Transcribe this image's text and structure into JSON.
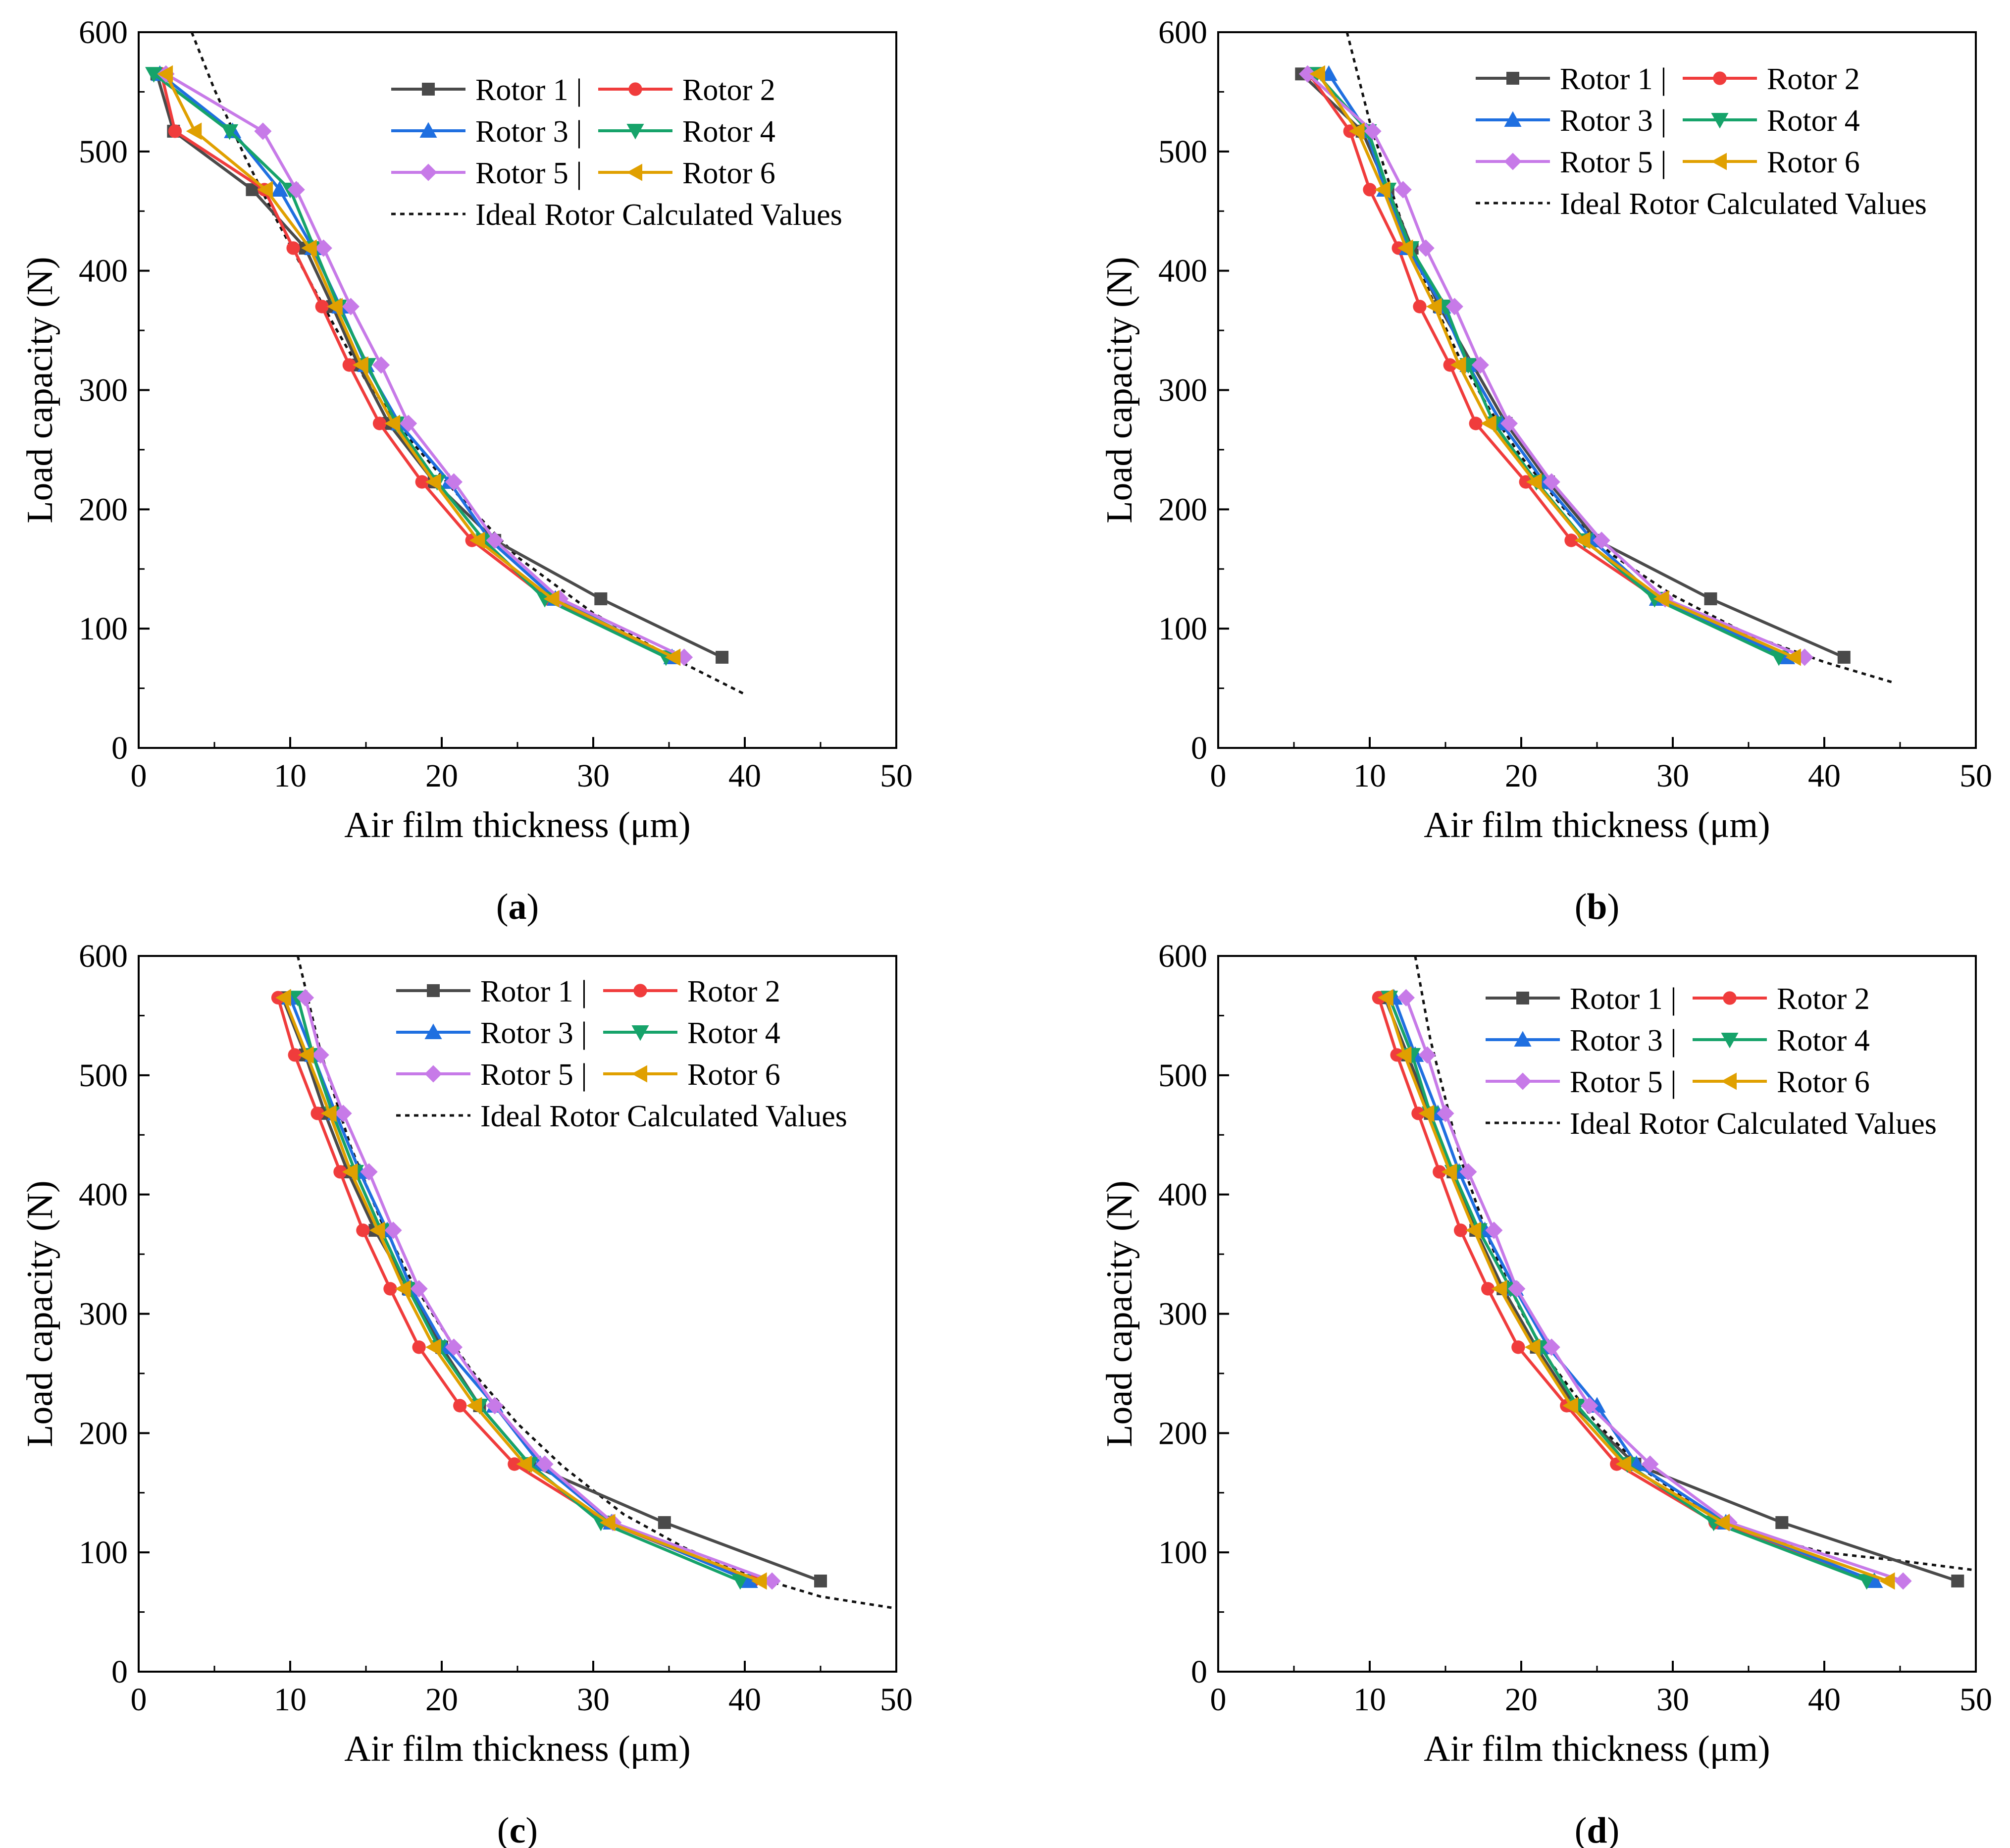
{
  "figure": {
    "font_note": "Times-like serif"
  },
  "colors": {
    "rotor1": "#4a4a4a",
    "rotor2": "#f03c3c",
    "rotor3": "#1f6fe0",
    "rotor4": "#16a36a",
    "rotor5": "#c77ae8",
    "rotor6": "#e0a000",
    "ideal": "#111111"
  },
  "chart_data": [
    {
      "type": "line",
      "panel_label": "(a)",
      "panel_letter": "a",
      "xlabel": "Air film thickness (μm)",
      "ylabel": "Load capacity (N)",
      "xlim": [
        0,
        50
      ],
      "ylim": [
        0,
        600
      ],
      "xticks": [
        0,
        10,
        20,
        30,
        40,
        50
      ],
      "yticks": [
        0,
        100,
        200,
        300,
        400,
        500,
        600
      ],
      "legend": [
        "Rotor 1 |",
        "Rotor 2",
        "Rotor 3 |",
        "Rotor 4",
        "Rotor 5 |",
        "Rotor 6",
        "Ideal Rotor Calculated Values"
      ],
      "legend_position": "top-right",
      "y": [
        565,
        517,
        468,
        419,
        370,
        321,
        272,
        223,
        174,
        125,
        76
      ],
      "series": [
        {
          "name": "Rotor 1",
          "marker": "square",
          "x": [
            1.2,
            2.3,
            7.5,
            11.0,
            12.8,
            14.5,
            16.5,
            19.5,
            23.5,
            30.5,
            38.5
          ]
        },
        {
          "name": "Rotor 2",
          "marker": "circle",
          "x": [
            1.5,
            2.4,
            8.3,
            10.2,
            12.1,
            13.9,
            15.9,
            18.7,
            22.0,
            27.0,
            35.0
          ]
        },
        {
          "name": "Rotor 3",
          "marker": "triangle-up",
          "x": [
            1.4,
            6.2,
            9.3,
            11.5,
            13.3,
            15.0,
            17.2,
            20.5,
            23.2,
            27.5,
            35.2
          ]
        },
        {
          "name": "Rotor 4",
          "marker": "triangle-down",
          "x": [
            1.0,
            6.0,
            10.0,
            11.6,
            13.2,
            15.1,
            17.0,
            19.7,
            22.8,
            26.8,
            34.8
          ]
        },
        {
          "name": "Rotor 5",
          "marker": "diamond",
          "x": [
            1.8,
            8.2,
            10.4,
            12.2,
            14.0,
            16.0,
            17.8,
            20.8,
            23.5,
            27.8,
            36.0
          ]
        },
        {
          "name": "Rotor 6",
          "marker": "triangle-left",
          "x": [
            1.8,
            3.7,
            8.4,
            11.3,
            13.0,
            14.7,
            16.8,
            19.5,
            22.4,
            27.3,
            35.3
          ]
        }
      ],
      "ideal": {
        "name": "Ideal Rotor Calculated Values",
        "x": [
          3.5,
          5,
          7,
          9,
          11,
          13,
          15,
          18,
          21,
          25,
          30,
          35,
          40
        ],
        "y": [
          600,
          552,
          496,
          445,
          398,
          352,
          308,
          257,
          213,
          160,
          113,
          77,
          45
        ]
      }
    },
    {
      "type": "line",
      "panel_label": "(b)",
      "panel_letter": "b",
      "xlabel": "Air film thickness (μm)",
      "ylabel": "Load capacity (N)",
      "xlim": [
        0,
        50
      ],
      "ylim": [
        0,
        600
      ],
      "xticks": [
        0,
        10,
        20,
        30,
        40,
        50
      ],
      "yticks": [
        0,
        100,
        200,
        300,
        400,
        500,
        600
      ],
      "legend": [
        "Rotor 1 |",
        "Rotor 2",
        "Rotor 3 |",
        "Rotor 4",
        "Rotor 5 |",
        "Rotor 6",
        "Ideal Rotor Calculated Values"
      ],
      "legend_position": "top-right",
      "y": [
        565,
        517,
        468,
        419,
        370,
        321,
        272,
        223,
        174,
        125,
        76
      ],
      "series": [
        {
          "name": "Rotor 1",
          "marker": "square",
          "x": [
            5.5,
            9.5,
            11.2,
            12.8,
            14.6,
            16.8,
            19.0,
            21.8,
            25.0,
            32.5,
            41.3
          ]
        },
        {
          "name": "Rotor 2",
          "marker": "circle",
          "x": [
            6.0,
            8.7,
            10.0,
            11.9,
            13.3,
            15.3,
            17.0,
            20.3,
            23.3,
            29.0,
            37.2
          ]
        },
        {
          "name": "Rotor 3",
          "marker": "triangle-up",
          "x": [
            7.3,
            9.8,
            11.0,
            12.5,
            14.8,
            16.5,
            18.7,
            21.5,
            24.7,
            29.0,
            37.5
          ]
        },
        {
          "name": "Rotor 4",
          "marker": "triangle-down",
          "x": [
            6.5,
            9.9,
            11.2,
            12.7,
            15.0,
            16.5,
            18.2,
            21.0,
            24.2,
            28.8,
            37.0
          ]
        },
        {
          "name": "Rotor 5",
          "marker": "diamond",
          "x": [
            5.9,
            10.2,
            12.2,
            13.7,
            15.6,
            17.3,
            19.2,
            22.0,
            25.3,
            29.5,
            38.7
          ]
        },
        {
          "name": "Rotor 6",
          "marker": "triangle-left",
          "x": [
            6.6,
            9.2,
            10.9,
            12.4,
            14.3,
            15.9,
            17.9,
            20.9,
            24.1,
            29.3,
            38.0
          ]
        }
      ],
      "ideal": {
        "name": "Ideal Rotor Calculated Values",
        "x": [
          8.5,
          10,
          12,
          14,
          16,
          18,
          20,
          23,
          26,
          30,
          35,
          40,
          44.5
        ],
        "y": [
          600,
          525,
          445,
          380,
          325,
          282,
          244,
          198,
          162,
          128,
          95,
          72,
          55
        ]
      }
    },
    {
      "type": "line",
      "panel_label": "(c)",
      "panel_letter": "c",
      "xlabel": "Air film thickness (μm)",
      "ylabel": "Load capacity (N)",
      "xlim": [
        0,
        50
      ],
      "ylim": [
        0,
        600
      ],
      "xticks": [
        0,
        10,
        20,
        30,
        40,
        50
      ],
      "yticks": [
        0,
        100,
        200,
        300,
        400,
        500,
        600
      ],
      "legend": [
        "Rotor 1 |",
        "Rotor 2",
        "Rotor 3 |",
        "Rotor 4",
        "Rotor 5 |",
        "Rotor 6",
        "Ideal Rotor Calculated Values"
      ],
      "legend_position": "top-right",
      "y": [
        565,
        517,
        468,
        419,
        370,
        321,
        272,
        223,
        174,
        125,
        76
      ],
      "series": [
        {
          "name": "Rotor 1",
          "marker": "square",
          "x": [
            9.5,
            11.0,
            12.3,
            13.8,
            15.6,
            17.8,
            20.0,
            22.5,
            25.8,
            34.7,
            45.0
          ]
        },
        {
          "name": "Rotor 2",
          "marker": "circle",
          "x": [
            9.2,
            10.3,
            11.8,
            13.3,
            14.8,
            16.6,
            18.5,
            21.2,
            24.8,
            31.0,
            40.5
          ]
        },
        {
          "name": "Rotor 3",
          "marker": "triangle-up",
          "x": [
            10.0,
            11.5,
            13.0,
            14.6,
            16.4,
            18.0,
            20.2,
            23.5,
            26.5,
            31.2,
            40.3
          ]
        },
        {
          "name": "Rotor 4",
          "marker": "triangle-down",
          "x": [
            10.5,
            11.5,
            12.8,
            14.3,
            16.0,
            17.8,
            19.8,
            22.5,
            25.8,
            30.5,
            39.7
          ]
        },
        {
          "name": "Rotor 5",
          "marker": "diamond",
          "x": [
            11.0,
            12.0,
            13.5,
            15.2,
            16.8,
            18.5,
            20.8,
            23.5,
            26.8,
            31.3,
            41.8
          ]
        },
        {
          "name": "Rotor 6",
          "marker": "triangle-left",
          "x": [
            9.6,
            11.1,
            12.6,
            14.0,
            15.8,
            17.5,
            19.5,
            22.2,
            25.5,
            31.0,
            41.0
          ]
        }
      ],
      "ideal": {
        "name": "Ideal Rotor Calculated Values",
        "x": [
          10.5,
          12,
          14,
          16,
          18,
          20,
          22,
          25,
          28,
          32,
          36,
          40,
          45,
          50
        ],
        "y": [
          600,
          520,
          440,
          378,
          328,
          288,
          252,
          208,
          172,
          132,
          104,
          82,
          63,
          53
        ]
      }
    },
    {
      "type": "line",
      "panel_label": "(d)",
      "panel_letter": "d",
      "xlabel": "Air film thickness (μm)",
      "ylabel": "Load capacity (N)",
      "xlim": [
        0,
        50
      ],
      "ylim": [
        0,
        600
      ],
      "xticks": [
        0,
        10,
        20,
        30,
        40,
        50
      ],
      "yticks": [
        0,
        100,
        200,
        300,
        400,
        500,
        600
      ],
      "legend": [
        "Rotor 1 |",
        "Rotor 2",
        "Rotor 3 |",
        "Rotor 4",
        "Rotor 5 |",
        "Rotor 6",
        "Ideal Rotor Calculated Values"
      ],
      "legend_position": "top-right",
      "y": [
        565,
        517,
        468,
        419,
        370,
        321,
        272,
        223,
        174,
        125,
        76
      ],
      "series": [
        {
          "name": "Rotor 1",
          "marker": "square",
          "x": [
            11.0,
            12.5,
            14.0,
            15.5,
            17.0,
            18.8,
            21.0,
            23.5,
            27.5,
            37.2,
            48.8
          ]
        },
        {
          "name": "Rotor 2",
          "marker": "circle",
          "x": [
            10.6,
            11.8,
            13.2,
            14.6,
            16.0,
            17.8,
            19.8,
            23.0,
            26.3,
            32.8,
            43.2
          ]
        },
        {
          "name": "Rotor 3",
          "marker": "triangle-up",
          "x": [
            11.6,
            13.0,
            14.5,
            15.9,
            17.6,
            19.6,
            21.8,
            25.0,
            27.6,
            33.5,
            43.3
          ]
        },
        {
          "name": "Rotor 4",
          "marker": "triangle-down",
          "x": [
            11.3,
            12.8,
            14.0,
            15.5,
            17.2,
            19.3,
            21.3,
            23.7,
            27.0,
            32.7,
            42.8
          ]
        },
        {
          "name": "Rotor 5",
          "marker": "diamond",
          "x": [
            12.4,
            13.8,
            15.0,
            16.5,
            18.2,
            19.7,
            22.0,
            24.5,
            28.5,
            33.7,
            45.2
          ]
        },
        {
          "name": "Rotor 6",
          "marker": "triangle-left",
          "x": [
            11.1,
            12.3,
            13.8,
            15.3,
            16.9,
            18.6,
            20.8,
            23.3,
            26.8,
            33.3,
            44.2
          ]
        }
      ],
      "ideal": {
        "name": "Ideal Rotor Calculated Values",
        "x": [
          13,
          14,
          16,
          18,
          20,
          22,
          25,
          28,
          32,
          36,
          40,
          45,
          50
        ],
        "y": [
          600,
          530,
          430,
          358,
          302,
          258,
          208,
          170,
          135,
          113,
          100,
          93,
          85
        ]
      }
    }
  ]
}
